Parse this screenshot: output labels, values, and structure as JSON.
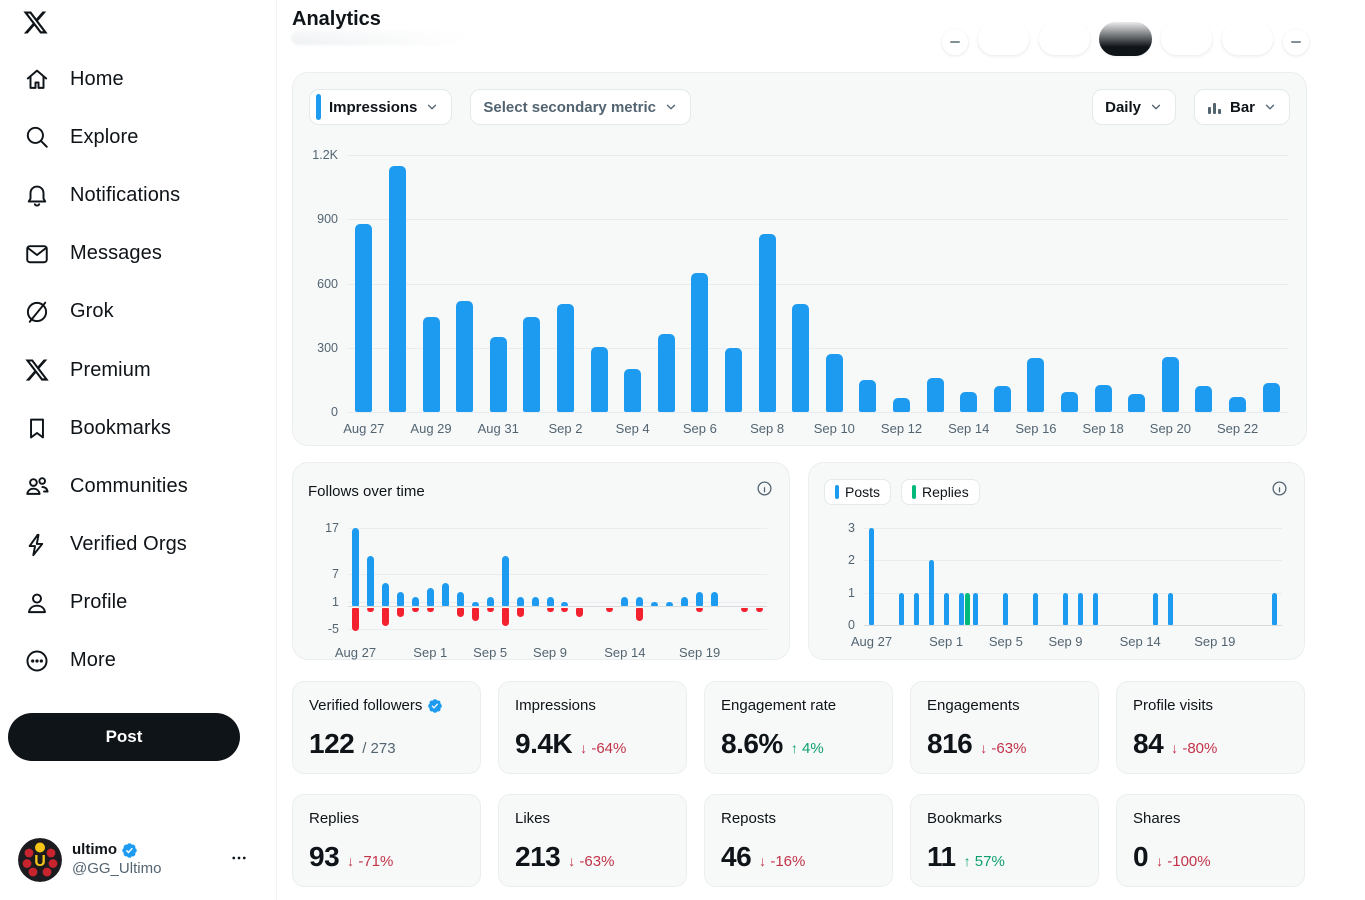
{
  "app": {
    "title": "Analytics"
  },
  "colors": {
    "accent_blue": "#1D9BF0",
    "replies_green": "#00BA7C",
    "positive_green": "#0E9F6E",
    "negative_red": "#C2334A",
    "unfollow_red": "#F4212E",
    "text_dark": "#0F1419",
    "text_gray": "#536471",
    "selected_pill": "#0F1419"
  },
  "sidebar": {
    "items": [
      {
        "label": "Home",
        "icon": "home-icon"
      },
      {
        "label": "Explore",
        "icon": "search-icon"
      },
      {
        "label": "Notifications",
        "icon": "bell-icon"
      },
      {
        "label": "Messages",
        "icon": "envelope-icon"
      },
      {
        "label": "Grok",
        "icon": "grok-icon"
      },
      {
        "label": "Premium",
        "icon": "x-premium-icon"
      },
      {
        "label": "Bookmarks",
        "icon": "bookmark-icon"
      },
      {
        "label": "Communities",
        "icon": "communities-icon"
      },
      {
        "label": "Verified Orgs",
        "icon": "lightning-icon"
      },
      {
        "label": "Profile",
        "icon": "person-icon"
      },
      {
        "label": "More",
        "icon": "more-circle-icon"
      }
    ],
    "post_button": "Post",
    "profile": {
      "name": "ultimo",
      "handle": "@GG_Ultimo",
      "verified": true,
      "avatar_letter": "U"
    }
  },
  "toolbar": {
    "pills": [
      {
        "shape": "circle",
        "label": "",
        "active": false
      },
      {
        "shape": "pill",
        "label": "",
        "active": false
      },
      {
        "shape": "pill",
        "label": "",
        "active": false
      },
      {
        "shape": "pill",
        "label": "",
        "active": true
      },
      {
        "shape": "pill",
        "label": "",
        "active": false
      },
      {
        "shape": "pill",
        "label": "",
        "active": false
      },
      {
        "shape": "circle",
        "label": "",
        "active": false
      }
    ]
  },
  "controls": {
    "primary_metric": "Impressions",
    "secondary_metric_placeholder": "Select secondary metric",
    "granularity": "Daily",
    "chart_type": "Bar"
  },
  "chart_data": [
    {
      "type": "bar",
      "name": "impressions-daily",
      "x": [
        "Aug 27",
        "Aug 28",
        "Aug 29",
        "Aug 30",
        "Aug 31",
        "Sep 1",
        "Sep 2",
        "Sep 3",
        "Sep 4",
        "Sep 5",
        "Sep 6",
        "Sep 7",
        "Sep 8",
        "Sep 9",
        "Sep 10",
        "Sep 11",
        "Sep 12",
        "Sep 13",
        "Sep 14",
        "Sep 15",
        "Sep 16",
        "Sep 17",
        "Sep 18",
        "Sep 19",
        "Sep 20",
        "Sep 21",
        "Sep 22",
        "Sep 23"
      ],
      "values": [
        880,
        1150,
        445,
        520,
        350,
        445,
        505,
        305,
        200,
        365,
        650,
        300,
        830,
        505,
        270,
        150,
        65,
        160,
        95,
        120,
        250,
        95,
        125,
        85,
        255,
        120,
        70,
        135
      ],
      "bar_color": "#1D9BF0",
      "ylim": [
        0,
        1200
      ],
      "grid": true,
      "y_ticks": [
        {
          "v": 0,
          "label": "0"
        },
        {
          "v": 300,
          "label": "300"
        },
        {
          "v": 600,
          "label": "600"
        },
        {
          "v": 900,
          "label": "900"
        },
        {
          "v": 1200,
          "label": "1.2K"
        }
      ],
      "x_ticks": [
        {
          "i": 0,
          "label": "Aug 27"
        },
        {
          "i": 2,
          "label": "Aug 29"
        },
        {
          "i": 4,
          "label": "Aug 31"
        },
        {
          "i": 6,
          "label": "Sep 2"
        },
        {
          "i": 8,
          "label": "Sep 4"
        },
        {
          "i": 10,
          "label": "Sep 6"
        },
        {
          "i": 12,
          "label": "Sep 8"
        },
        {
          "i": 14,
          "label": "Sep 10"
        },
        {
          "i": 16,
          "label": "Sep 12"
        },
        {
          "i": 18,
          "label": "Sep 14"
        },
        {
          "i": 20,
          "label": "Sep 16"
        },
        {
          "i": 22,
          "label": "Sep 18"
        },
        {
          "i": 24,
          "label": "Sep 20"
        },
        {
          "i": 26,
          "label": "Sep 22"
        }
      ]
    },
    {
      "type": "bar",
      "name": "follows-over-time",
      "title": "Follows over time",
      "x": [
        "Aug 27",
        "Aug 28",
        "Aug 29",
        "Aug 30",
        "Aug 31",
        "Sep 1",
        "Sep 2",
        "Sep 3",
        "Sep 4",
        "Sep 5",
        "Sep 6",
        "Sep 7",
        "Sep 8",
        "Sep 9",
        "Sep 10",
        "Sep 11",
        "Sep 12",
        "Sep 13",
        "Sep 14",
        "Sep 15",
        "Sep 16",
        "Sep 17",
        "Sep 18",
        "Sep 19",
        "Sep 20",
        "Sep 21",
        "Sep 22",
        "Sep 23"
      ],
      "series": [
        {
          "name": "follows",
          "color": "#1D9BF0",
          "values": [
            17,
            11,
            5,
            3,
            2,
            4,
            5,
            3,
            1,
            2,
            11,
            2,
            2,
            2,
            1,
            0,
            0,
            0,
            2,
            2,
            1,
            1,
            2,
            3,
            3,
            0,
            0,
            0
          ]
        },
        {
          "name": "unfollows",
          "color": "#F4212E",
          "values": [
            -5,
            -1,
            -4,
            -2,
            -1,
            -1,
            0,
            -2,
            -3,
            -1,
            -4,
            -2,
            0,
            -1,
            -1,
            -2,
            0,
            -1,
            0,
            -3,
            0,
            0,
            0,
            -1,
            0,
            0,
            -1,
            -1
          ]
        }
      ],
      "ylim": [
        -6.5,
        18.5
      ],
      "grid": true,
      "y_ticks": [
        {
          "v": 17,
          "label": "17"
        },
        {
          "v": 7,
          "label": "7"
        },
        {
          "v": 1,
          "label": "1"
        },
        {
          "v": -5,
          "label": "-5"
        }
      ],
      "x_ticks": [
        {
          "i": 0,
          "label": "Aug 27"
        },
        {
          "i": 5,
          "label": "Sep 1"
        },
        {
          "i": 9,
          "label": "Sep 5"
        },
        {
          "i": 13,
          "label": "Sep 9"
        },
        {
          "i": 18,
          "label": "Sep 14"
        },
        {
          "i": 23,
          "label": "Sep 19"
        }
      ]
    },
    {
      "type": "bar",
      "name": "posts-and-replies",
      "legend": [
        "Posts",
        "Replies"
      ],
      "x": [
        "Aug 27",
        "Aug 28",
        "Aug 29",
        "Aug 30",
        "Aug 31",
        "Sep 1",
        "Sep 2",
        "Sep 3",
        "Sep 4",
        "Sep 5",
        "Sep 6",
        "Sep 7",
        "Sep 8",
        "Sep 9",
        "Sep 10",
        "Sep 11",
        "Sep 12",
        "Sep 13",
        "Sep 14",
        "Sep 15",
        "Sep 16",
        "Sep 17",
        "Sep 18",
        "Sep 19",
        "Sep 20",
        "Sep 21",
        "Sep 22",
        "Sep 23"
      ],
      "series": [
        {
          "name": "Posts",
          "color": "#1D9BF0",
          "values": [
            3,
            0,
            1,
            1,
            2,
            1,
            1,
            1,
            0,
            1,
            0,
            1,
            0,
            1,
            1,
            1,
            0,
            0,
            0,
            1,
            1,
            0,
            0,
            0,
            0,
            0,
            0,
            1
          ]
        },
        {
          "name": "Replies",
          "color": "#00BA7C",
          "values": [
            0,
            0,
            0,
            0,
            0,
            0,
            1,
            0,
            0,
            0,
            0,
            0,
            0,
            0,
            0,
            0,
            0,
            0,
            0,
            0,
            0,
            0,
            0,
            0,
            0,
            0,
            0,
            0
          ]
        }
      ],
      "ylim": [
        0,
        3.1
      ],
      "grid": true,
      "y_ticks": [
        {
          "v": 3,
          "label": "3"
        },
        {
          "v": 2,
          "label": "2"
        },
        {
          "v": 1,
          "label": "1"
        },
        {
          "v": 0,
          "label": "0"
        }
      ],
      "x_ticks": [
        {
          "i": 0,
          "label": "Aug 27"
        },
        {
          "i": 5,
          "label": "Sep 1"
        },
        {
          "i": 9,
          "label": "Sep 5"
        },
        {
          "i": 13,
          "label": "Sep 9"
        },
        {
          "i": 18,
          "label": "Sep 14"
        },
        {
          "i": 23,
          "label": "Sep 19"
        }
      ]
    }
  ],
  "stat_cards": [
    {
      "label": "Verified followers",
      "value": "122",
      "suffix": "/ 273",
      "verified_badge": true
    },
    {
      "label": "Impressions",
      "value": "9.4K",
      "delta": "-64%",
      "trend": "down"
    },
    {
      "label": "Engagement rate",
      "value": "8.6%",
      "delta": "4%",
      "trend": "up"
    },
    {
      "label": "Engagements",
      "value": "816",
      "delta": "-63%",
      "trend": "down"
    },
    {
      "label": "Profile visits",
      "value": "84",
      "delta": "-80%",
      "trend": "down"
    },
    {
      "label": "Replies",
      "value": "93",
      "delta": "-71%",
      "trend": "down"
    },
    {
      "label": "Likes",
      "value": "213",
      "delta": "-63%",
      "trend": "down"
    },
    {
      "label": "Reposts",
      "value": "46",
      "delta": "-16%",
      "trend": "down"
    },
    {
      "label": "Bookmarks",
      "value": "11",
      "delta": "57%",
      "trend": "up"
    },
    {
      "label": "Shares",
      "value": "0",
      "delta": "-100%",
      "trend": "down"
    }
  ]
}
